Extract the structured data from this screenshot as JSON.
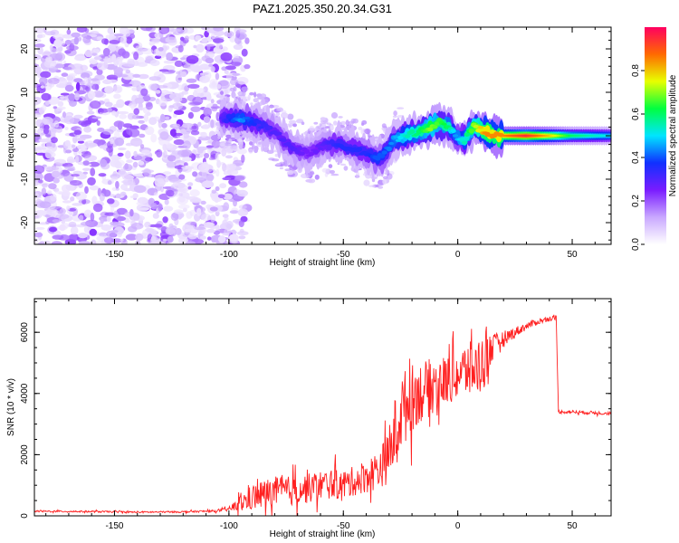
{
  "chart_data": [
    {
      "type": "heatmap",
      "title": "PAZ1.2025.350.20.34.G31",
      "xlabel": "Height of straight line (km)",
      "ylabel": "Frequency (Hz)",
      "xlim": [
        -185,
        67
      ],
      "ylim": [
        -25,
        25
      ],
      "x_ticks": [
        "-150",
        "-100",
        "-50",
        "0",
        "50"
      ],
      "y_ticks": [
        "-20",
        "-10",
        "0",
        "10",
        "20"
      ],
      "colorbar": {
        "label": "Normalized spectral amplitude",
        "range": [
          0.0,
          1.0
        ],
        "ticks": [
          "0.0",
          "0.2",
          "0.4",
          "0.6",
          "0.8"
        ],
        "colors": [
          "#ffffff",
          "#c9a8ff",
          "#7a1cff",
          "#1030ff",
          "#00e5ff",
          "#00ff40",
          "#e8ff00",
          "#ff6a00",
          "#ff0060"
        ]
      },
      "ridge": {
        "x": [
          -103,
          -95,
          -88,
          -80,
          -72,
          -65,
          -58,
          -52,
          -45,
          -40,
          -36,
          -33,
          -28,
          -22,
          -17,
          -12,
          -8,
          -4,
          -1,
          3,
          7,
          12,
          16,
          20,
          30,
          40,
          50,
          67
        ],
        "y": [
          4,
          4,
          3,
          1,
          -3,
          -4,
          -2,
          -2,
          -3,
          -4,
          -5,
          -5,
          -1,
          0,
          1,
          2,
          3,
          2,
          0,
          -1,
          2,
          1,
          0,
          0,
          0,
          0,
          0,
          0
        ],
        "amplitude": [
          0.3,
          0.45,
          0.35,
          0.3,
          0.3,
          0.25,
          0.3,
          0.35,
          0.35,
          0.35,
          0.4,
          0.4,
          0.45,
          0.55,
          0.6,
          0.7,
          0.65,
          0.6,
          0.45,
          0.55,
          0.7,
          0.85,
          0.85,
          0.85,
          0.95,
          0.8,
          0.6,
          0.5
        ]
      }
    },
    {
      "type": "line",
      "title": "",
      "xlabel": "Height of straight line (km)",
      "ylabel": "SNR (10 * v/v)",
      "xlim": [
        -185,
        67
      ],
      "ylim": [
        0,
        7100
      ],
      "x_ticks": [
        "-150",
        "-100",
        "-50",
        "0",
        "50"
      ],
      "y_ticks": [
        "0",
        "2000",
        "4000",
        "6000"
      ],
      "series": [
        {
          "name": "SNR",
          "color": "#ff2020",
          "x": [
            -185,
            -160,
            -140,
            -120,
            -105,
            -100,
            -95,
            -90,
            -85,
            -80,
            -75,
            -70,
            -65,
            -60,
            -55,
            -50,
            -45,
            -40,
            -35,
            -30,
            -26,
            -22,
            -18,
            -14,
            -10,
            -6,
            -2,
            2,
            6,
            10,
            13,
            16,
            20,
            25,
            30,
            35,
            40,
            43,
            44,
            50,
            55,
            60,
            67
          ],
          "values": [
            150,
            140,
            120,
            130,
            160,
            220,
            400,
            600,
            700,
            800,
            800,
            850,
            900,
            1000,
            1050,
            1000,
            1150,
            1300,
            1500,
            1900,
            3200,
            3700,
            4000,
            4100,
            4300,
            4400,
            4500,
            4700,
            4800,
            4900,
            5400,
            5600,
            5800,
            6000,
            6200,
            6350,
            6450,
            6480,
            3400,
            3400,
            3380,
            3370,
            3350
          ],
          "noise_envelope": [
            40,
            40,
            40,
            40,
            50,
            100,
            400,
            600,
            700,
            700,
            700,
            700,
            700,
            700,
            700,
            700,
            700,
            800,
            900,
            1200,
            1900,
            1700,
            1500,
            1400,
            1300,
            1200,
            1100,
            1300,
            1300,
            1400,
            1500,
            500,
            350,
            250,
            180,
            140,
            120,
            100,
            80,
            80,
            80,
            80,
            80
          ]
        }
      ]
    }
  ]
}
